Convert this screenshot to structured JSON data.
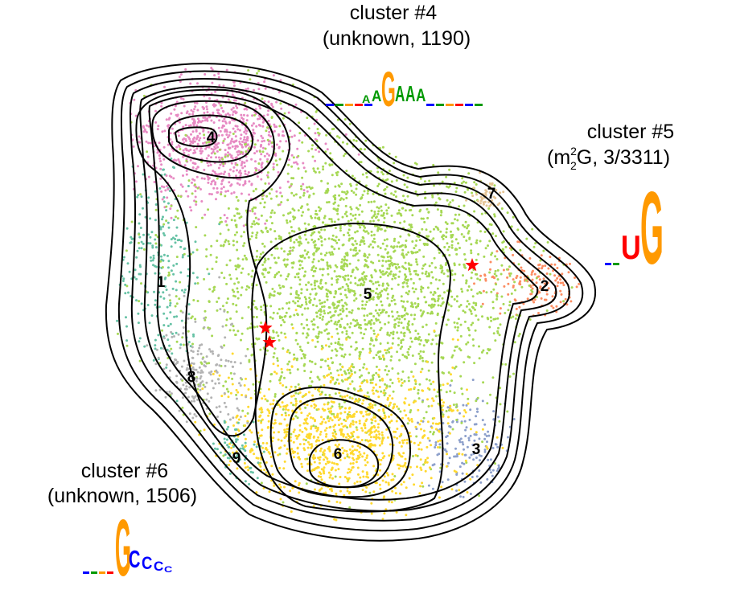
{
  "chart_data": {
    "type": "scatter",
    "title": "",
    "xlabel": "",
    "ylabel": "",
    "axes_visible": false,
    "grid": false,
    "legend": "none",
    "density_contours": true,
    "callouts": [
      {
        "id": "c4",
        "line1": "cluster #4",
        "line2": "(unknown, 1190)",
        "motif": "GAAA"
      },
      {
        "id": "c5",
        "line1_pre": "cluster #5",
        "line2_pre": "(m",
        "sup": "2",
        "sub": "2",
        "line2_post": "G, 3/3311)",
        "motif": "UG"
      },
      {
        "id": "c6",
        "line1": "cluster #6",
        "line2": "(unknown, 1506)",
        "motif": "GCCC"
      }
    ],
    "clusters": [
      {
        "label": "1",
        "color": "#66c2a5"
      },
      {
        "label": "2",
        "color": "#fc8d62"
      },
      {
        "label": "3",
        "color": "#8da0cb"
      },
      {
        "label": "4",
        "color": "#e78ac3"
      },
      {
        "label": "5",
        "color": "#a6d854"
      },
      {
        "label": "6",
        "color": "#ffd92f"
      },
      {
        "label": "7",
        "color": "#e5c494"
      },
      {
        "label": "8",
        "color": "#b3b3b3"
      },
      {
        "label": "9",
        "color": "#66c2a5"
      }
    ],
    "highlight_points": {
      "marker": "star",
      "color": "#ff0000",
      "count": 3
    }
  }
}
